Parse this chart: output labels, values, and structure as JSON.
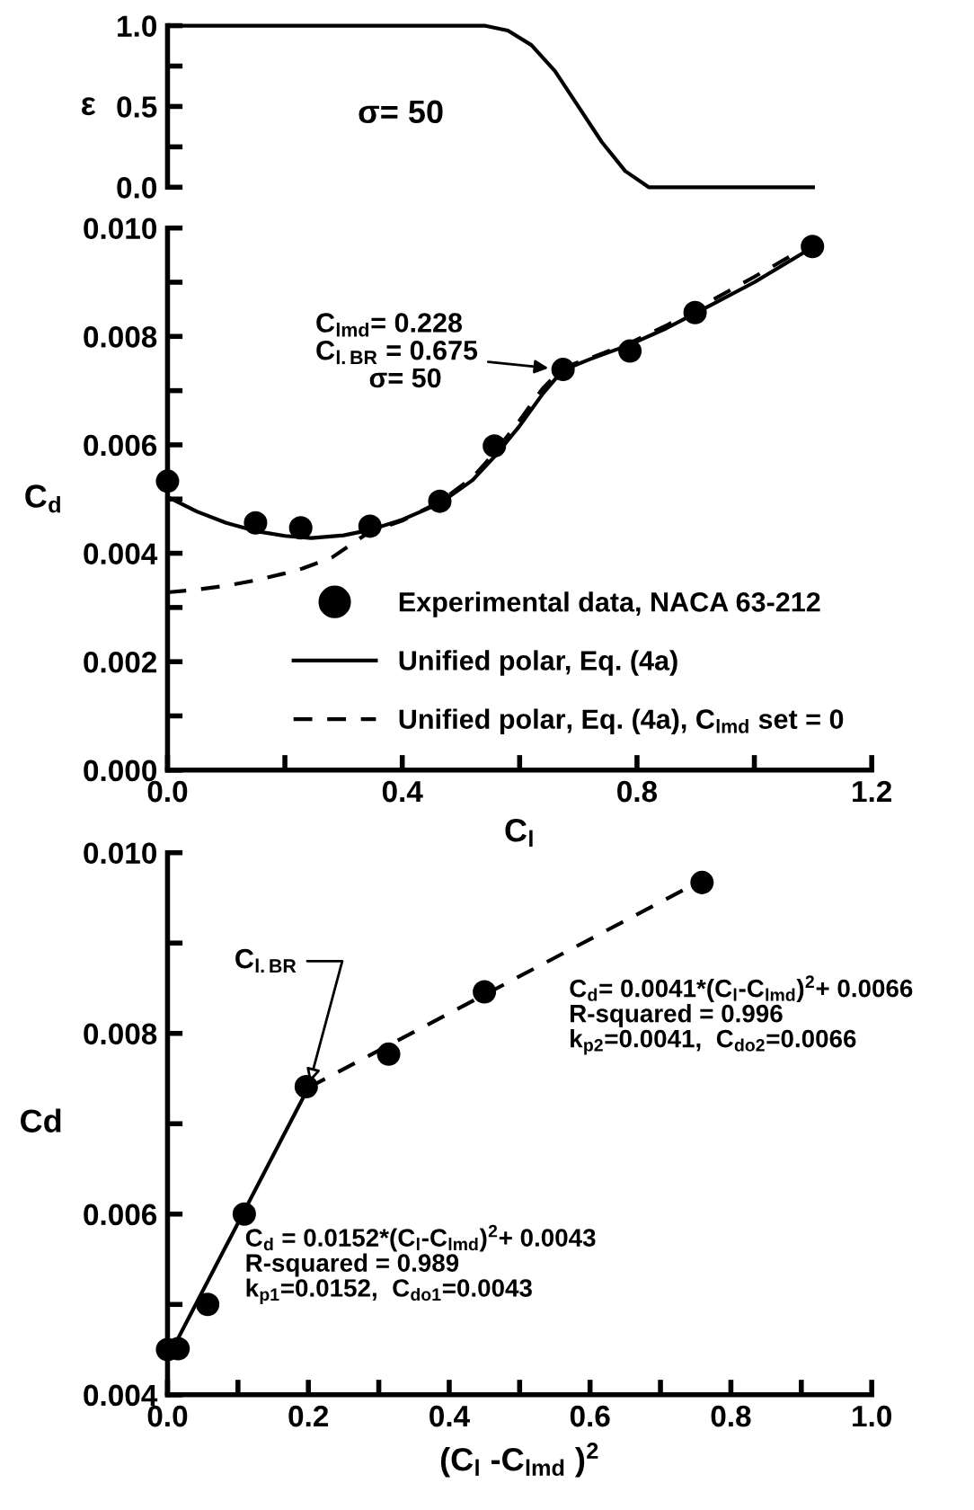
{
  "chart_data": [
    {
      "type": "line",
      "ylabel": "ε",
      "xlim": [
        0,
        1.2
      ],
      "ylim": [
        0,
        1.0
      ],
      "yticks": [
        {
          "value": 0.0,
          "label": "0.0"
        },
        {
          "value": 0.25,
          "label": null
        },
        0.5,
        {
          "value": 0.75,
          "label": null
        },
        {
          "value": 1.0,
          "label": "1.0"
        }
      ],
      "tick_labels": "y",
      "grid": false,
      "legend": false,
      "annotations": [
        "σ= 50"
      ],
      "series": [
        {
          "color": "#000000",
          "line_style": "solid",
          "marker": "none",
          "x": [
            0,
            0.1,
            0.2,
            0.3,
            0.4,
            0.5,
            0.54,
            0.58,
            0.62,
            0.66,
            0.7,
            0.74,
            0.78,
            0.82,
            0.86,
            0.9,
            1.0,
            1.1
          ],
          "values": [
            1.0,
            1.0,
            1.0,
            1.0,
            1.0,
            1.0,
            1.0,
            0.97,
            0.88,
            0.72,
            0.5,
            0.28,
            0.1,
            0.0,
            0.0,
            0.0,
            0.0,
            0.0
          ]
        }
      ]
    },
    {
      "type": "line",
      "xlabel": "C$_{l}$",
      "ylabel": "C$_{d}$",
      "xlim": [
        0,
        1.2
      ],
      "ylim": [
        0,
        0.01
      ],
      "xticks": [
        {
          "value": 0.0,
          "label": "0.0"
        },
        {
          "value": 0.2,
          "label": null
        },
        0.4,
        {
          "value": 0.6,
          "label": null
        },
        0.8,
        {
          "value": 1.0,
          "label": null
        },
        1.2
      ],
      "yticks": [
        {
          "value": 0.0,
          "label": "0.000"
        },
        {
          "value": 0.001,
          "label": null
        },
        0.002,
        {
          "value": 0.003,
          "label": null
        },
        0.004,
        {
          "value": 0.005,
          "label": null
        },
        0.006,
        {
          "value": 0.007,
          "label": null
        },
        0.008,
        {
          "value": 0.009,
          "label": null
        },
        {
          "value": 0.01,
          "label": "0.010"
        }
      ],
      "grid": false,
      "legend": "bottom",
      "annotations": [
        "C$_{lmd}$= 0.228\nC$_{l.BR}$ = 0.675\n       σ= 50"
      ],
      "series": [
        {
          "name": "Experimental data, NACA 63-212",
          "type": "scatter",
          "color": "#000000",
          "marker": "circle",
          "x": [
            0,
            0.15,
            0.227,
            0.345,
            0.464,
            0.557,
            0.674,
            0.788,
            0.899,
            1.099
          ],
          "values": [
            0.00533,
            0.00456,
            0.00447,
            0.0045,
            0.00496,
            0.00598,
            0.00739,
            0.00773,
            0.00844,
            0.00966
          ]
        },
        {
          "name": "Unified polar, Eq. (4a)",
          "color": "#000000",
          "line_style": "solid",
          "marker": "none",
          "x": [
            0,
            0.05,
            0.1,
            0.15,
            0.2,
            0.245,
            0.3,
            0.345,
            0.4,
            0.464,
            0.52,
            0.557,
            0.6,
            0.64,
            0.674,
            0.72,
            0.788,
            0.85,
            0.9,
            1.0,
            1.1
          ],
          "values": [
            0.00504,
            0.00477,
            0.00456,
            0.00441,
            0.00432,
            0.00428,
            0.00433,
            0.00443,
            0.00462,
            0.00492,
            0.00535,
            0.00578,
            0.00635,
            0.00695,
            0.00738,
            0.00758,
            0.00785,
            0.00815,
            0.00843,
            0.009,
            0.00965
          ]
        },
        {
          "name": "Unified polar, Eq. (4a), C$_{lmd}$ set = 0",
          "color": "#000000",
          "line_style": "dashed",
          "marker": "none",
          "x": [
            0,
            0.05,
            0.1,
            0.15,
            0.2,
            0.23,
            0.28,
            0.345,
            0.4,
            0.464,
            0.52,
            0.557,
            0.6,
            0.64,
            0.674,
            0.72,
            0.788,
            0.85,
            0.9,
            1.0,
            1.1
          ],
          "values": [
            0.00328,
            0.00333,
            0.0034,
            0.0035,
            0.00363,
            0.00372,
            0.00392,
            0.0044,
            0.0046,
            0.00495,
            0.0054,
            0.00585,
            0.00645,
            0.00705,
            0.00742,
            0.0076,
            0.00788,
            0.0082,
            0.0085,
            0.0091,
            0.00972
          ]
        }
      ]
    },
    {
      "type": "line",
      "xlabel": "(C$_{l}$ -C$_{lmd}$ )$^{2}$",
      "ylabel": "Cd",
      "xlim": [
        0,
        1.0
      ],
      "ylim": [
        0.004,
        0.01
      ],
      "xticks": [
        {
          "value": 0.0,
          "label": "0.0"
        },
        {
          "value": 0.1,
          "label": null
        },
        0.2,
        {
          "value": 0.3,
          "label": null
        },
        0.4,
        {
          "value": 0.5,
          "label": null
        },
        0.6,
        {
          "value": 0.7,
          "label": null
        },
        0.8,
        {
          "value": 0.9,
          "label": null
        },
        {
          "value": 1.0,
          "label": "1.0"
        }
      ],
      "yticks": [
        0.004,
        {
          "value": 0.005,
          "label": null
        },
        0.006,
        {
          "value": 0.007,
          "label": null
        },
        0.008,
        {
          "value": 0.009,
          "label": null
        },
        {
          "value": 0.01,
          "label": "0.010"
        }
      ],
      "grid": false,
      "legend": false,
      "annotations": [
        {
          "text": "C$_{l.BR}$",
          "x": 0.2,
          "y": 0.0074
        },
        "C$_{d}$= 0.0041*(C$_{l}$-C$_{lmd}$)$^{2}$+ 0.0066\nR-squared = 0.996\nk$_{p2}$=0.0041,  C$_{do2}$=0.0066",
        "C$_{d}$ = 0.0152*(C$_{l}$-C$_{lmd}$)$^{2}$+ 0.0043\nR-squared = 0.989\nk$_{p1}$=0.0152,  C$_{do1}$=0.0043"
      ],
      "series": [
        {
          "color": "#000000",
          "line_style": "solid",
          "marker": "none",
          "x": [
            0,
            0.2
          ],
          "values": [
            0.0044,
            0.0074
          ]
        },
        {
          "color": "#000000",
          "line_style": "dashed",
          "marker": "none",
          "x": [
            0.2,
            0.76
          ],
          "values": [
            0.0074,
            0.0097
          ]
        },
        {
          "type": "scatter",
          "color": "#000000",
          "marker": "circle",
          "x": [
            0,
            0.015,
            0.057,
            0.109,
            0.197,
            0.314,
            0.45,
            0.759
          ],
          "values": [
            0.0045,
            0.00451,
            0.005,
            0.006,
            0.00741,
            0.00777,
            0.00846,
            0.00967
          ]
        }
      ]
    }
  ]
}
